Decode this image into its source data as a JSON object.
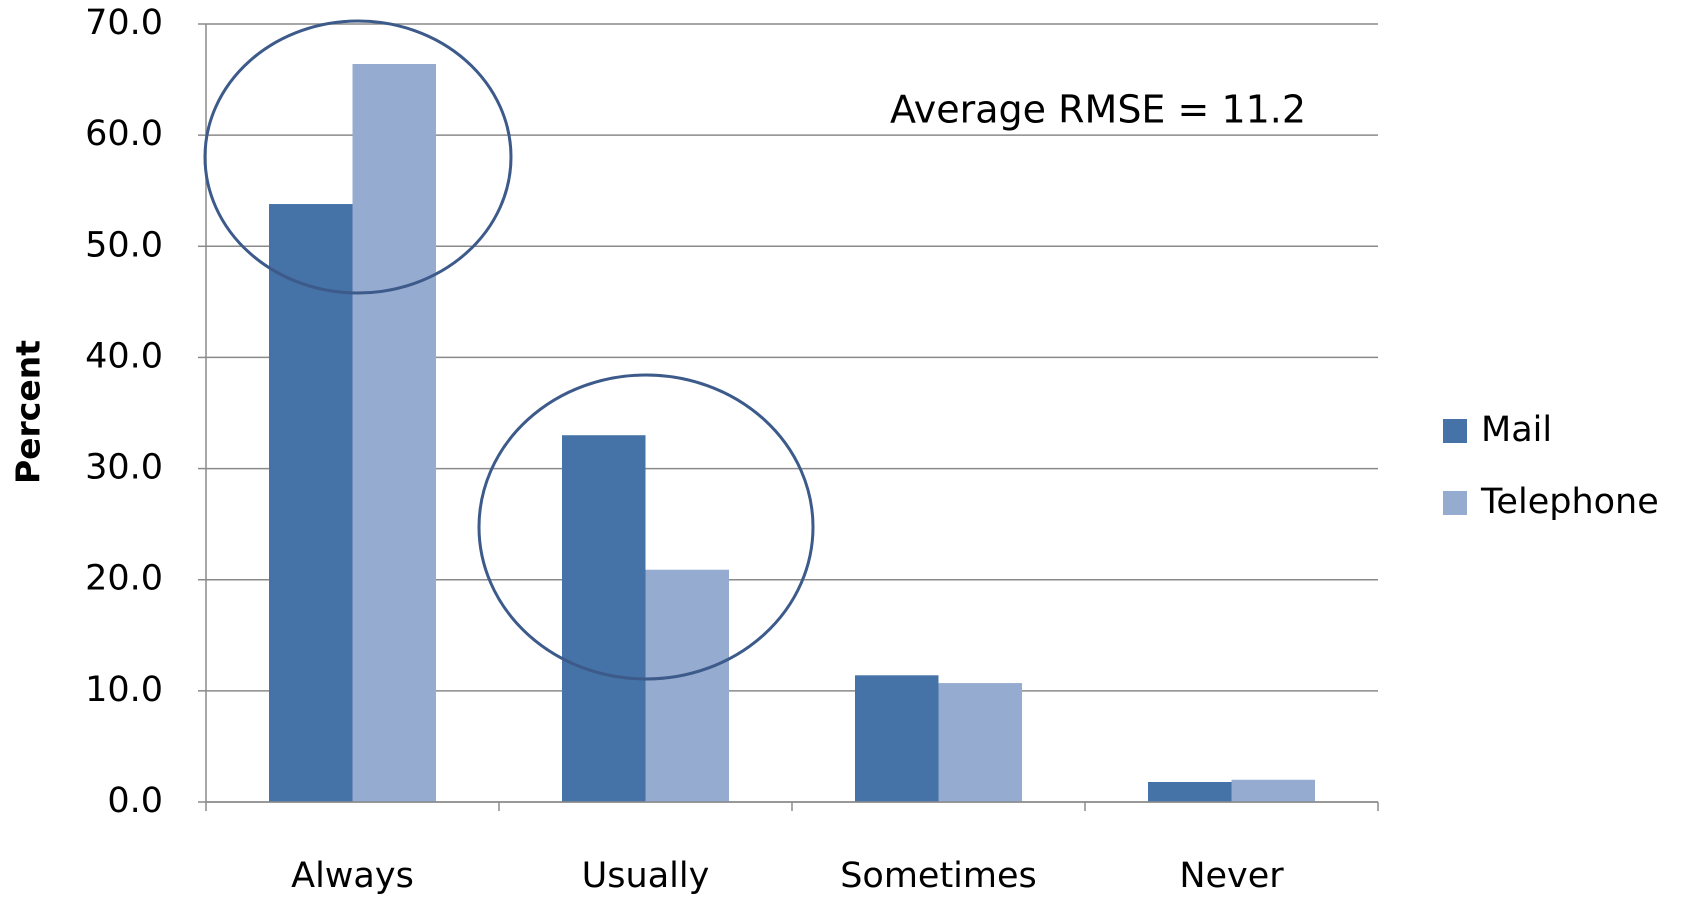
{
  "chart_data": {
    "type": "bar",
    "y_label": "Percent",
    "annotation": "Average RMSE = 11.2",
    "categories": [
      "Always",
      "Usually",
      "Sometimes",
      "Never"
    ],
    "series": [
      {
        "name": "Mail",
        "color": "#4572a7",
        "values": [
          53.8,
          33.0,
          11.4,
          1.8
        ]
      },
      {
        "name": "Telephone",
        "color": "#95abd0",
        "values": [
          66.4,
          20.9,
          10.7,
          2.0
        ]
      }
    ],
    "ylim": [
      0,
      70
    ],
    "yticks": [
      {
        "value": 0,
        "label": "0.0"
      },
      {
        "value": 10,
        "label": "10.0"
      },
      {
        "value": 20,
        "label": "20.0"
      },
      {
        "value": 30,
        "label": "30.0"
      },
      {
        "value": 40,
        "label": "40.0"
      },
      {
        "value": 50,
        "label": "50.0"
      },
      {
        "value": 60,
        "label": "60.0"
      },
      {
        "value": 70,
        "label": "70.0"
      }
    ],
    "grid": true,
    "legend": "right"
  }
}
